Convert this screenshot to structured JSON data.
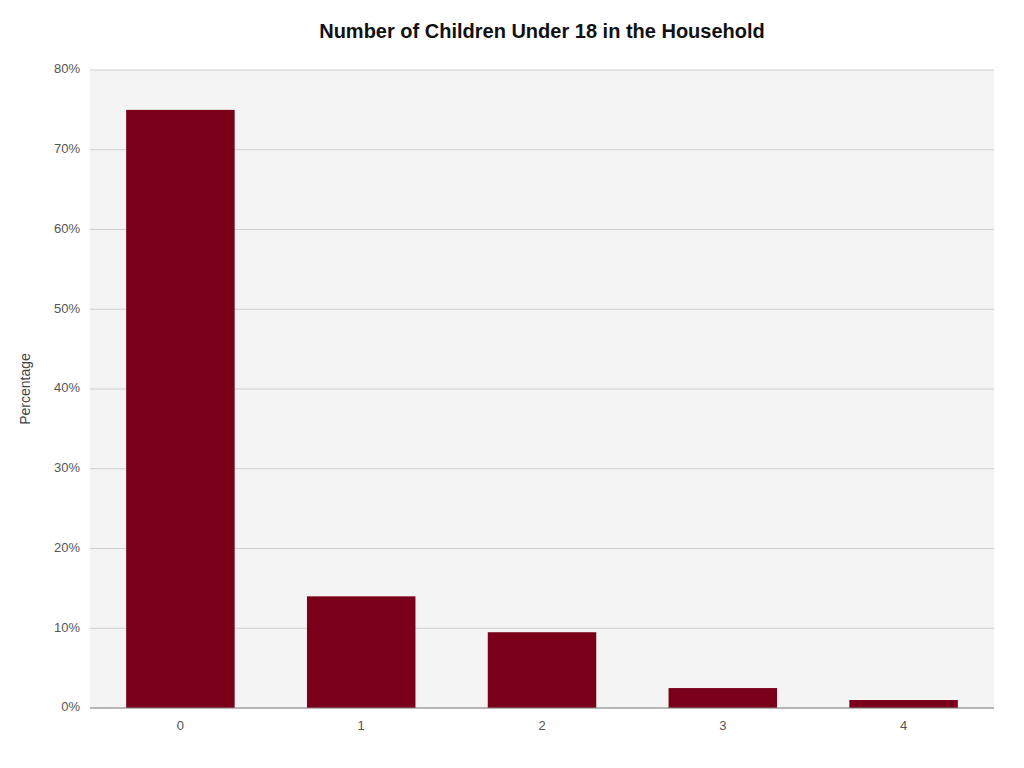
{
  "chart_data": {
    "type": "bar",
    "title": "Number of Children Under 18 in the Household",
    "categories": [
      0,
      1,
      2,
      3,
      4
    ],
    "values": [
      75.0,
      14.0,
      9.5,
      2.5,
      1.0
    ],
    "color": "#7a0019",
    "ylabel": "Percentage",
    "ylim": [
      0,
      80
    ],
    "yticks": [
      {
        "value": 0,
        "label": "0%"
      },
      {
        "value": 10,
        "label": "10%"
      },
      {
        "value": 20,
        "label": "20%"
      },
      {
        "value": 30,
        "label": "30%"
      },
      {
        "value": 40,
        "label": "40%"
      },
      {
        "value": 50,
        "label": "50%"
      },
      {
        "value": 60,
        "label": "60%"
      },
      {
        "value": 70,
        "label": "70%"
      },
      {
        "value": 80,
        "label": "80%"
      }
    ],
    "grid": true
  }
}
